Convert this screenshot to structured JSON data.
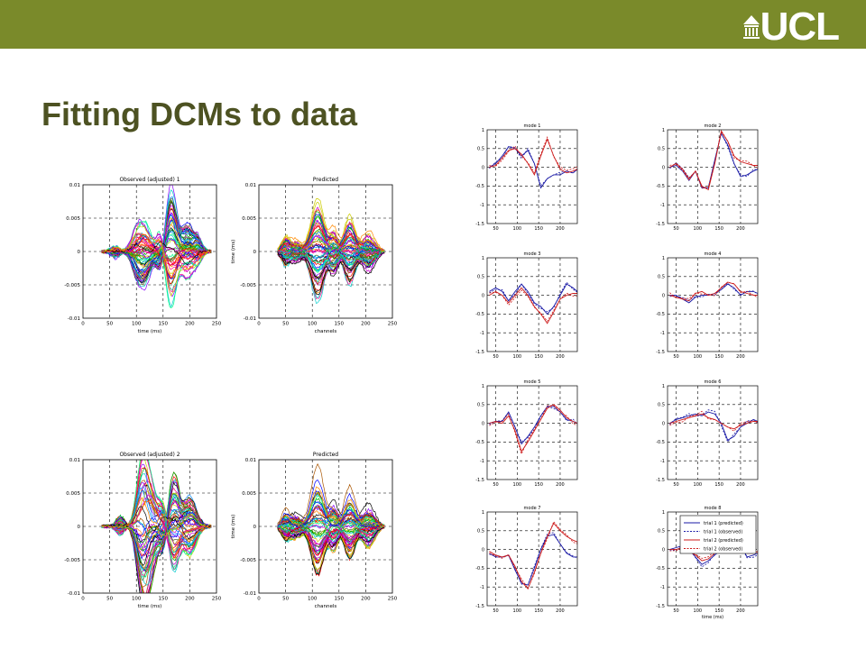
{
  "header": {
    "brand": "UCL",
    "banner_color": "#7a8a2a"
  },
  "slide": {
    "title": "Fitting DCMs to data"
  },
  "chart_data": [
    {
      "id": "observed-1",
      "type": "line",
      "title": "Observed (adjusted) 1",
      "xlabel": "time (ms)",
      "ylabel": "",
      "xlim": [
        0,
        250
      ],
      "ylim": [
        -0.01,
        0.01
      ],
      "xticks": [
        "0",
        "50",
        "100",
        "150",
        "200",
        "250"
      ],
      "yticks": [
        "-0.01",
        "-0.005",
        "0",
        "0.005",
        "0.01"
      ],
      "grid": true,
      "trace_count": 64,
      "data_range": [
        35,
        240
      ],
      "peaks": [
        [
          60,
          -0.1
        ],
        [
          100,
          0.3
        ],
        [
          115,
          -0.5
        ],
        [
          145,
          0.35
        ],
        [
          165,
          1.0
        ],
        [
          195,
          -0.45
        ],
        [
          215,
          0.2
        ]
      ]
    },
    {
      "id": "predicted-1",
      "type": "line",
      "title": "Predicted",
      "xlabel": "channels",
      "ylabel": "time (ms)",
      "xlim": [
        0,
        250
      ],
      "ylim": [
        -0.01,
        0.01
      ],
      "xticks": [
        "0",
        "50",
        "100",
        "150",
        "200",
        "250"
      ],
      "yticks": [
        "-0.01",
        "-0.005",
        "0",
        "0.005",
        "0.01"
      ],
      "grid": true,
      "trace_count": 64,
      "data_range": [
        35,
        235
      ],
      "peaks": [
        [
          50,
          0.25
        ],
        [
          70,
          -0.2
        ],
        [
          110,
          0.9
        ],
        [
          140,
          -0.4
        ],
        [
          170,
          0.6
        ],
        [
          205,
          -0.35
        ]
      ]
    },
    {
      "id": "observed-2",
      "type": "line",
      "title": "Observed (adjusted) 2",
      "xlabel": "time (ms)",
      "ylabel": "",
      "xlim": [
        0,
        250
      ],
      "ylim": [
        -0.01,
        0.01
      ],
      "xticks": [
        "0",
        "50",
        "100",
        "150",
        "200",
        "250"
      ],
      "yticks": [
        "-0.01",
        "-0.005",
        "0",
        "0.005",
        "0.01"
      ],
      "grid": true,
      "trace_count": 64,
      "data_range": [
        35,
        240
      ],
      "peaks": [
        [
          70,
          0.15
        ],
        [
          110,
          1.0
        ],
        [
          125,
          -0.8
        ],
        [
          150,
          0.4
        ],
        [
          170,
          0.8
        ],
        [
          200,
          -0.5
        ]
      ]
    },
    {
      "id": "predicted-2",
      "type": "line",
      "title": "Predicted",
      "xlabel": "channels",
      "ylabel": "time (ms)",
      "xlim": [
        0,
        250
      ],
      "ylim": [
        -0.01,
        0.01
      ],
      "xticks": [
        "0",
        "50",
        "100",
        "150",
        "200",
        "250"
      ],
      "yticks": [
        "-0.01",
        "-0.005",
        "0",
        "0.005",
        "0.01"
      ],
      "grid": true,
      "trace_count": 64,
      "data_range": [
        35,
        235
      ],
      "peaks": [
        [
          50,
          0.25
        ],
        [
          70,
          -0.2
        ],
        [
          110,
          0.9
        ],
        [
          140,
          -0.4
        ],
        [
          170,
          0.6
        ],
        [
          205,
          -0.35
        ]
      ]
    }
  ],
  "modes": {
    "xlim": [
      30,
      240
    ],
    "ylim": [
      -1.5,
      1
    ],
    "xticks": [
      "50",
      "100",
      "150",
      "200"
    ],
    "yticks": [
      "1",
      "0.5",
      "0",
      "-0.5",
      "-1",
      "-1.5"
    ],
    "xlabel": "time (ms)",
    "legend": [
      "trial 1 (predicted)",
      "trial 1 (observed)",
      "trial 2 (predicted)",
      "trial 2 (observed)"
    ],
    "series_colors": [
      "#1a1aa6",
      "#1a1aa6",
      "#cc1a1a",
      "#cc1a1a"
    ],
    "x": [
      35,
      50,
      65,
      80,
      95,
      110,
      125,
      140,
      155,
      170,
      185,
      200,
      215,
      230,
      240
    ],
    "panels": [
      {
        "title": "mode 1",
        "t1": [
          0,
          0.1,
          0.3,
          0.55,
          0.5,
          0.3,
          0.45,
          0.1,
          -0.55,
          -0.3,
          -0.2,
          -0.2,
          -0.1,
          -0.15,
          -0.05
        ],
        "t2": [
          0,
          0.05,
          0.25,
          0.45,
          0.5,
          0.35,
          0.1,
          -0.2,
          0.3,
          0.75,
          0.3,
          -0.05,
          -0.15,
          -0.1,
          -0.05
        ]
      },
      {
        "title": "mode 2",
        "t1": [
          0,
          0.05,
          -0.1,
          -0.35,
          -0.1,
          -0.55,
          -0.55,
          0.2,
          0.9,
          0.6,
          0.1,
          -0.25,
          -0.2,
          -0.1,
          -0.05
        ],
        "t2": [
          0,
          0.1,
          -0.05,
          -0.3,
          -0.1,
          -0.5,
          -0.6,
          0.1,
          0.95,
          0.7,
          0.3,
          0.15,
          0.1,
          0.05,
          0.05
        ]
      },
      {
        "title": "mode 3",
        "t1": [
          0.1,
          0.2,
          0.1,
          -0.15,
          0.1,
          0.3,
          0.1,
          -0.2,
          -0.3,
          -0.5,
          -0.3,
          0.0,
          0.3,
          0.2,
          0.1
        ],
        "t2": [
          0.0,
          0.1,
          0.0,
          -0.2,
          0.0,
          0.2,
          0.0,
          -0.3,
          -0.5,
          -0.75,
          -0.45,
          -0.1,
          0.0,
          0.05,
          0.05
        ]
      },
      {
        "title": "mode 4",
        "t1": [
          0.0,
          0.0,
          -0.1,
          -0.2,
          -0.05,
          0.0,
          0.0,
          0.05,
          0.15,
          0.3,
          0.2,
          0.0,
          0.1,
          0.1,
          0.05
        ],
        "t2": [
          0.0,
          -0.05,
          -0.1,
          -0.15,
          0.05,
          0.1,
          0.0,
          0.05,
          0.2,
          0.35,
          0.3,
          0.1,
          0.05,
          0.0,
          0.0
        ]
      },
      {
        "title": "mode 5",
        "t1": [
          0.0,
          0.05,
          0.05,
          0.3,
          -0.1,
          -0.55,
          -0.35,
          -0.1,
          0.2,
          0.45,
          0.45,
          0.3,
          0.1,
          0.05,
          0.0
        ],
        "t2": [
          0.0,
          0.05,
          0.0,
          0.2,
          -0.2,
          -0.75,
          -0.5,
          -0.2,
          0.1,
          0.4,
          0.5,
          0.35,
          0.15,
          0.05,
          0.0
        ]
      },
      {
        "title": "mode 6",
        "t1": [
          0.0,
          0.1,
          0.15,
          0.2,
          0.25,
          0.2,
          0.3,
          0.25,
          0.0,
          -0.45,
          -0.35,
          -0.1,
          0.0,
          0.1,
          0.05
        ],
        "t2": [
          0.0,
          0.05,
          0.1,
          0.15,
          0.2,
          0.25,
          0.15,
          0.1,
          0.0,
          -0.1,
          -0.15,
          -0.05,
          0.0,
          0.05,
          0.05
        ]
      },
      {
        "title": "mode 7",
        "t1": [
          -0.1,
          -0.2,
          -0.2,
          -0.15,
          -0.55,
          -0.9,
          -0.95,
          -0.5,
          0.0,
          0.35,
          0.4,
          0.15,
          -0.1,
          -0.2,
          -0.2
        ],
        "t2": [
          -0.05,
          -0.15,
          -0.2,
          -0.15,
          -0.45,
          -0.85,
          -1.05,
          -0.6,
          -0.1,
          0.35,
          0.7,
          0.5,
          0.35,
          0.25,
          0.2
        ]
      },
      {
        "title": "mode 8",
        "t1": [
          0.0,
          0.05,
          0.1,
          0.0,
          -0.2,
          -0.4,
          -0.3,
          -0.15,
          0.0,
          0.2,
          0.25,
          0.15,
          -0.2,
          -0.15,
          -0.1
        ],
        "t2": [
          0.0,
          0.0,
          0.05,
          -0.05,
          -0.15,
          -0.3,
          -0.25,
          -0.1,
          0.05,
          0.25,
          0.3,
          0.1,
          -0.1,
          -0.1,
          -0.05
        ]
      }
    ]
  }
}
